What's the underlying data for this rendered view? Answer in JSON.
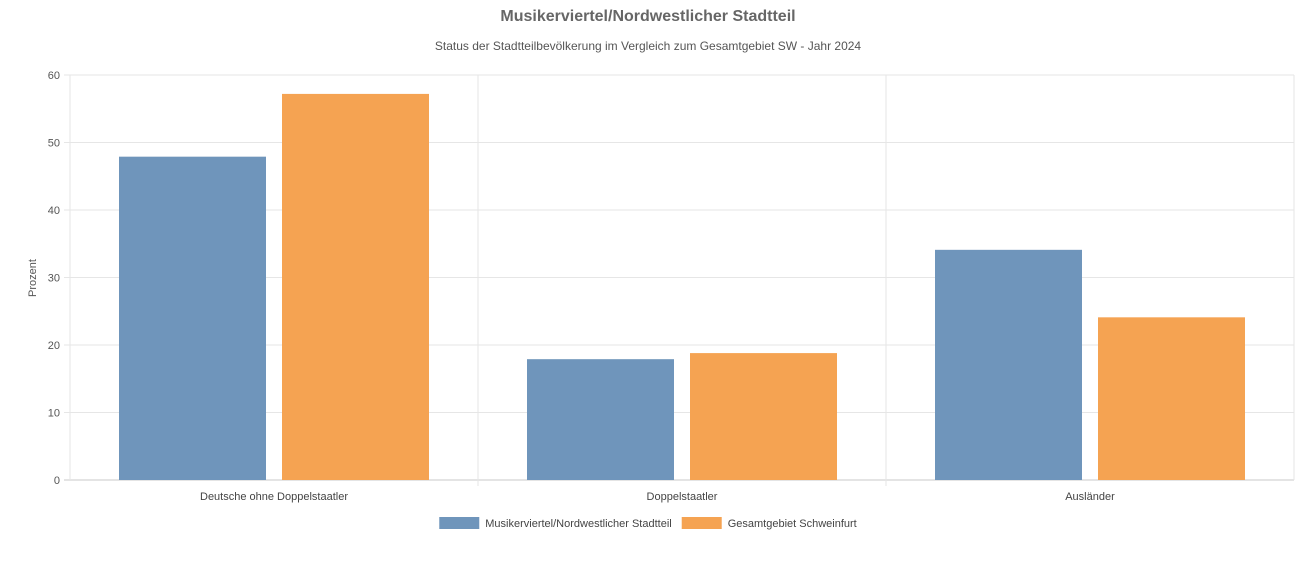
{
  "chart_data": {
    "type": "bar",
    "title": "Musikerviertel/Nordwestlicher Stadtteil",
    "subtitle": "Status der Stadtteilbevölkerung im Vergleich zum Gesamtgebiet SW - Jahr 2024",
    "xlabel": "",
    "ylabel": "Prozent",
    "ylim": [
      0,
      60
    ],
    "yticks": [
      0,
      10,
      20,
      30,
      40,
      50,
      60
    ],
    "categories": [
      "Deutsche ohne Doppelstaatler",
      "Doppelstaatler",
      "Ausländer"
    ],
    "series": [
      {
        "name": "Musikerviertel/Nordwestlicher Stadtteil",
        "color": "#6f95bb",
        "values": [
          47.9,
          17.9,
          34.1
        ]
      },
      {
        "name": "Gesamtgebiet Schweinfurt",
        "color": "#f5a352",
        "values": [
          57.2,
          18.8,
          24.1
        ]
      }
    ],
    "grid": true,
    "legend_position": "bottom"
  }
}
